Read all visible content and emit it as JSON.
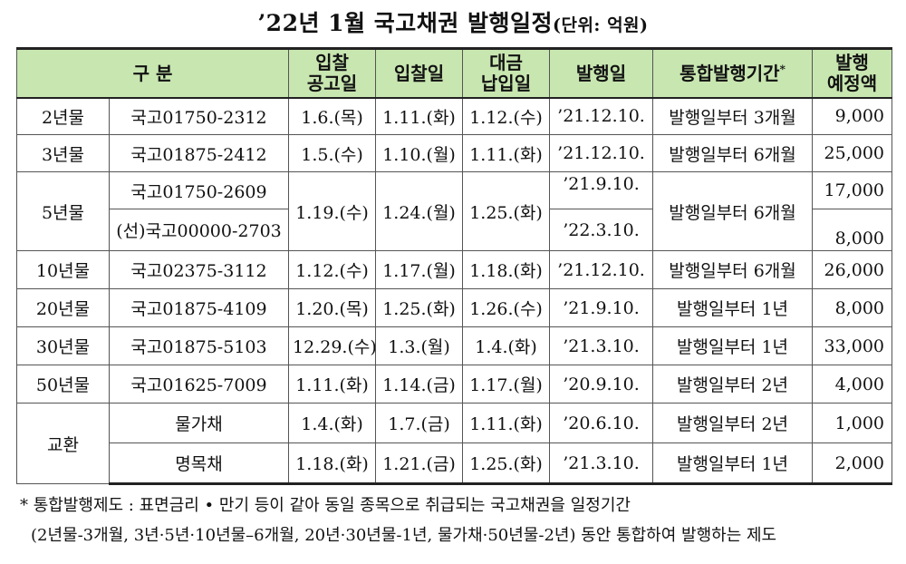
{
  "title": {
    "main": "’22년 1월 국고채권 발행일정",
    "unit": "(단위: 억원)"
  },
  "header": {
    "category": "구 분",
    "notice_date_line1": "입찰",
    "notice_date_line2": "공고일",
    "bid_date": "입찰일",
    "payment_date_line1": "대금",
    "payment_date_line2": "납입일",
    "issue_date": "발행일",
    "integrated_period": "통합발행기간",
    "integrated_period_mark": "*",
    "planned_amount_line1": "발행",
    "planned_amount_line2": "예정액"
  },
  "rows": {
    "r2y": {
      "group": "2년물",
      "bond": "국고01750-2312",
      "notice": "1.6.(목)",
      "bid": "1.11.(화)",
      "pay": "1.12.(수)",
      "issue": "’21.12.10.",
      "period": "발행일부터 3개월",
      "amount": "9,000"
    },
    "r3y": {
      "group": "3년물",
      "bond": "국고01875-2412",
      "notice": "1.5.(수)",
      "bid": "1.10.(월)",
      "pay": "1.11.(화)",
      "issue": "’21.12.10.",
      "period": "발행일부터 6개월",
      "amount": "25,000"
    },
    "r5y": {
      "group": "5년물",
      "bond_a": "국고01750-2609",
      "bond_b": "(선)국고00000-2703",
      "notice": "1.19.(수)",
      "bid": "1.24.(월)",
      "pay": "1.25.(화)",
      "issue_a": "’21.9.10.",
      "issue_b": "’22.3.10.",
      "period": "발행일부터 6개월",
      "amount_a": "17,000",
      "amount_b": "8,000"
    },
    "r10y": {
      "group": "10년물",
      "bond": "국고02375-3112",
      "notice": "1.12.(수)",
      "bid": "1.17.(월)",
      "pay": "1.18.(화)",
      "issue": "’21.12.10.",
      "period": "발행일부터 6개월",
      "amount": "26,000"
    },
    "r20y": {
      "group": "20년물",
      "bond": "국고01875-4109",
      "notice": "1.20.(목)",
      "bid": "1.25.(화)",
      "pay": "1.26.(수)",
      "issue": "’21.9.10.",
      "period": "발행일부터 1년",
      "amount": "8,000"
    },
    "r30y": {
      "group": "30년물",
      "bond": "국고01875-5103",
      "notice": "12.29.(수)",
      "bid": "1.3.(월)",
      "pay": "1.4.(화)",
      "issue": "’21.3.10.",
      "period": "발행일부터 1년",
      "amount": "33,000"
    },
    "r50y": {
      "group": "50년물",
      "bond": "국고01625-7009",
      "notice": "1.11.(화)",
      "bid": "1.14.(금)",
      "pay": "1.17.(월)",
      "issue": "’20.9.10.",
      "period": "발행일부터 2년",
      "amount": "4,000"
    },
    "ex1": {
      "group": "교환",
      "bond": "물가채",
      "notice": "1.4.(화)",
      "bid": "1.7.(금)",
      "pay": "1.11.(화)",
      "issue": "’20.6.10.",
      "period": "발행일부터 2년",
      "amount": "1,000"
    },
    "ex2": {
      "bond": "명목채",
      "notice": "1.18.(화)",
      "bid": "1.21.(금)",
      "pay": "1.25.(화)",
      "issue": "’21.3.10.",
      "period": "발행일부터 1년",
      "amount": "2,000"
    }
  },
  "footnote": {
    "line1": "* 통합발행제도 : 표면금리 • 만기 등이 같아 동일 종목으로 취급되는 국고채권을 일정기간",
    "line2": "(2년물-3개월, 3년·5년·10년물–6개월, 20년·30년물-1년, 물가채·50년물-2년) 동안 통합하여 발행하는 제도"
  },
  "colors": {
    "header_bg": "#c8e6b0",
    "border": "#555555"
  }
}
